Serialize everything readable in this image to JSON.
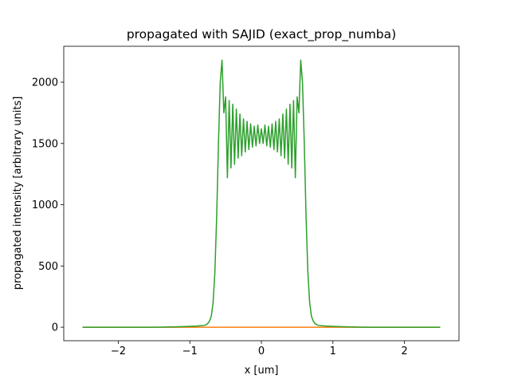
{
  "chart_data": {
    "type": "line",
    "title": "propagated with SAJID (exact_prop_numba)",
    "xlabel": "x [um]",
    "ylabel": "propagated intensity [arbitrary units]",
    "xlim": [
      -2.763,
      2.763
    ],
    "ylim": [
      -110,
      2293
    ],
    "xticks": [
      {
        "value": -2,
        "label": "−2"
      },
      {
        "value": -1,
        "label": "−1"
      },
      0,
      1,
      2
    ],
    "yticks": [
      0,
      500,
      1000,
      1500,
      2000
    ],
    "grid": false,
    "x": [
      -2.5,
      -2.4,
      -2.3,
      -2.2,
      -2.1,
      -2.0,
      -1.9,
      -1.8,
      -1.7,
      -1.6,
      -1.5,
      -1.4,
      -1.3,
      -1.2,
      -1.1,
      -1.0,
      -0.9,
      -0.8,
      -0.775,
      -0.75,
      -0.725,
      -0.7,
      -0.675,
      -0.65,
      -0.625,
      -0.6,
      -0.575,
      -0.55,
      -0.525,
      -0.5,
      -0.475,
      -0.45,
      -0.425,
      -0.4,
      -0.375,
      -0.35,
      -0.325,
      -0.3,
      -0.275,
      -0.25,
      -0.225,
      -0.2,
      -0.175,
      -0.15,
      -0.125,
      -0.1,
      -0.075,
      -0.05,
      -0.025,
      0,
      0.025,
      0.05,
      0.075,
      0.1,
      0.125,
      0.15,
      0.175,
      0.2,
      0.225,
      0.25,
      0.275,
      0.3,
      0.325,
      0.35,
      0.375,
      0.4,
      0.425,
      0.45,
      0.475,
      0.5,
      0.525,
      0.55,
      0.575,
      0.6,
      0.625,
      0.65,
      0.675,
      0.7,
      0.725,
      0.75,
      0.775,
      0.8,
      0.9,
      1.0,
      1.1,
      1.2,
      1.3,
      1.4,
      1.5,
      1.6,
      1.7,
      1.8,
      1.9,
      2.0,
      2.1,
      2.2,
      2.3,
      2.4,
      2.5
    ],
    "series": [
      {
        "color": "#ff7f0e",
        "values": [
          0,
          0,
          0,
          0,
          0,
          0,
          0,
          0,
          0,
          0,
          0,
          0,
          0,
          0,
          0,
          0,
          0,
          0,
          0,
          0,
          0,
          0,
          0,
          0,
          0,
          0,
          0,
          0,
          0,
          0,
          0,
          0,
          0,
          0,
          0,
          0,
          0,
          0,
          0,
          0,
          0,
          0,
          0,
          0,
          0,
          0,
          0,
          0,
          0,
          0,
          0,
          0,
          0,
          0,
          0,
          0,
          0,
          0,
          0,
          0,
          0,
          0,
          0,
          0,
          0,
          0,
          0,
          0,
          0,
          0,
          0,
          0,
          0,
          0,
          0,
          0,
          0,
          0,
          0,
          0,
          0,
          0,
          0,
          0,
          0,
          0,
          0,
          0,
          0,
          0,
          0,
          0,
          0,
          0,
          0,
          0,
          0,
          0,
          0
        ]
      },
      {
        "color": "#2ca02c",
        "values": [
          0,
          0,
          0,
          0,
          0,
          0,
          0,
          0,
          0,
          0,
          0,
          1,
          2,
          3,
          5,
          7,
          10,
          15,
          20,
          30,
          50,
          90,
          200,
          450,
          900,
          1500,
          2000,
          2180,
          1750,
          1880,
          1220,
          1850,
          1300,
          1820,
          1330,
          1780,
          1380,
          1740,
          1400,
          1700,
          1430,
          1680,
          1450,
          1660,
          1470,
          1640,
          1480,
          1650,
          1500,
          1620,
          1500,
          1650,
          1480,
          1640,
          1470,
          1660,
          1450,
          1680,
          1430,
          1700,
          1400,
          1740,
          1380,
          1780,
          1330,
          1820,
          1300,
          1850,
          1220,
          1880,
          1750,
          2180,
          2000,
          1500,
          900,
          450,
          200,
          90,
          50,
          30,
          20,
          15,
          10,
          7,
          5,
          3,
          2,
          1,
          0,
          0,
          0,
          0,
          0,
          0,
          0,
          0,
          0,
          0,
          0
        ]
      }
    ]
  }
}
